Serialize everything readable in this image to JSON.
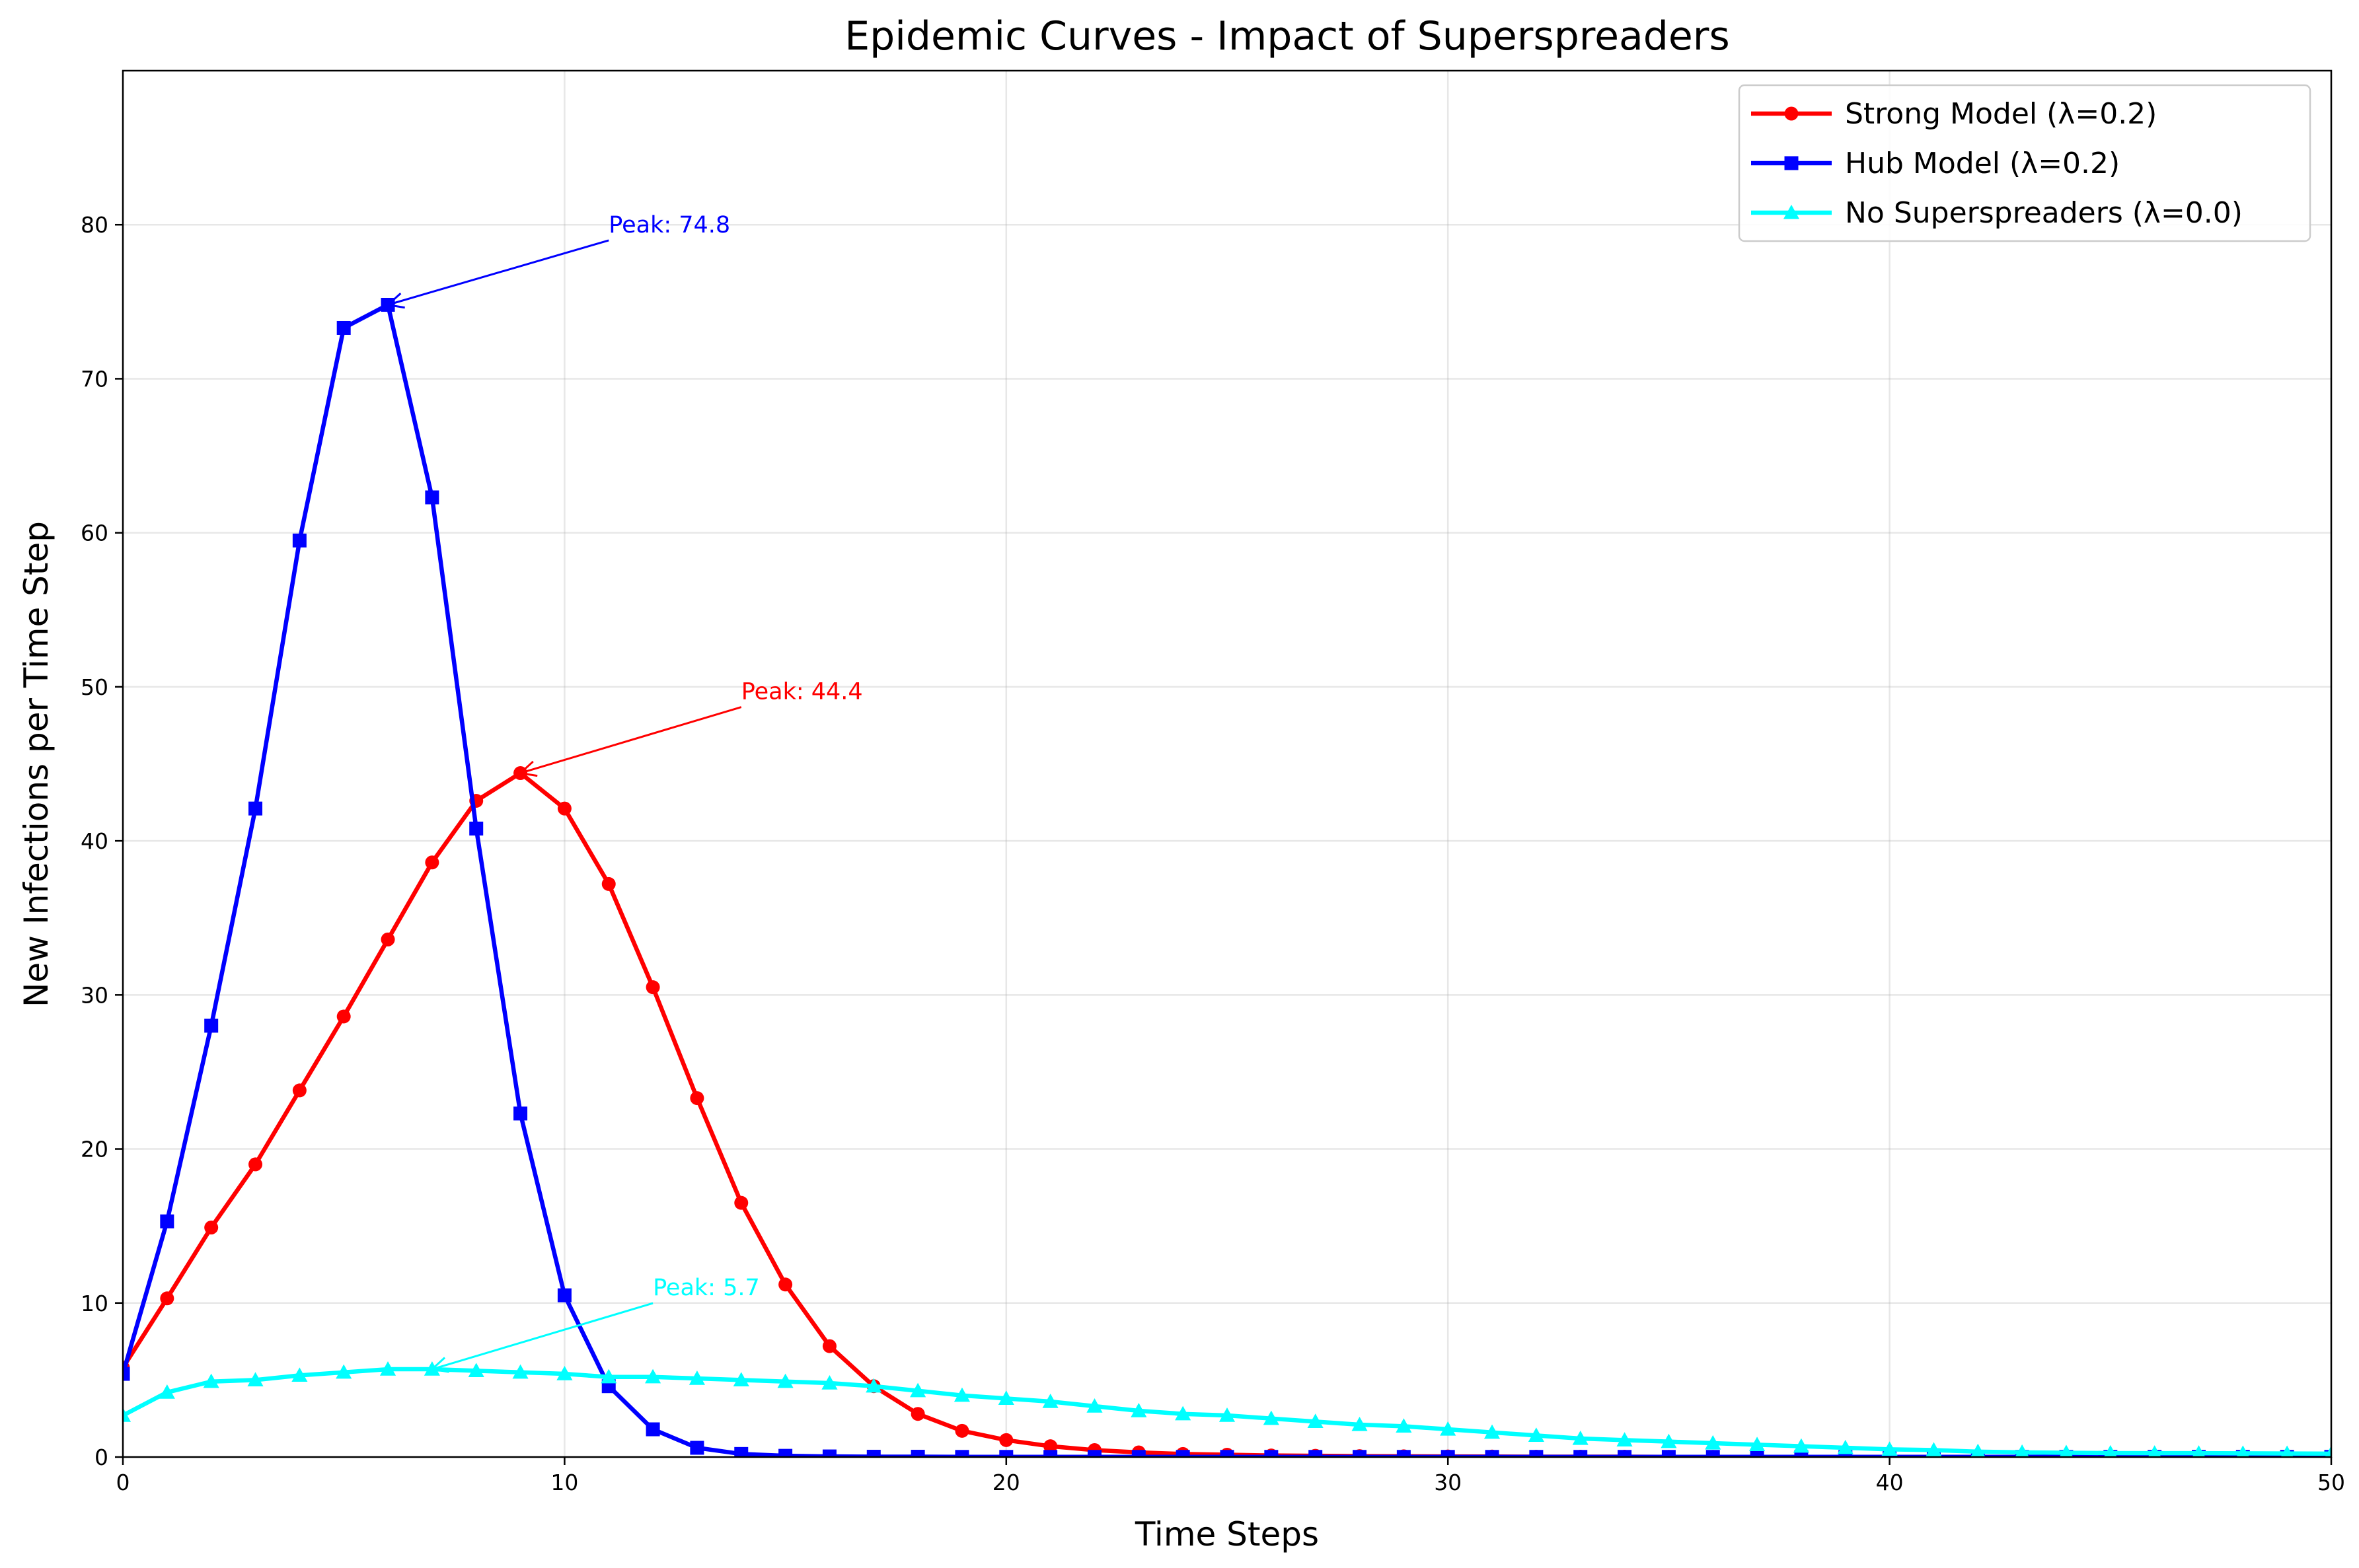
{
  "chart_data": {
    "type": "line",
    "title": "Epidemic Curves - Impact of Superspreaders",
    "xlabel": "Time Steps",
    "ylabel": "New Infections per Time Step",
    "xlim": [
      0,
      50
    ],
    "ylim": [
      0,
      90
    ],
    "xticks": [
      0,
      10,
      20,
      30,
      40,
      50
    ],
    "yticks": [
      0,
      10,
      20,
      30,
      40,
      50,
      60,
      70,
      80
    ],
    "grid": true,
    "legend_position": "top-right",
    "series": [
      {
        "name": "Strong Model (λ=0.2)",
        "color": "#ff0000",
        "marker": "circle",
        "x": [
          0,
          1,
          2,
          3,
          4,
          5,
          6,
          7,
          8,
          9,
          10,
          11,
          12,
          13,
          14,
          15,
          16,
          17,
          18,
          19,
          20,
          21,
          22,
          23,
          24,
          25,
          26,
          27,
          28,
          29,
          30,
          31,
          32,
          33,
          34,
          35,
          36,
          37,
          38,
          39,
          40,
          41,
          42,
          43,
          44,
          45,
          46,
          47,
          48,
          49,
          50
        ],
        "values": [
          5.8,
          10.3,
          14.9,
          19.0,
          23.8,
          28.6,
          33.6,
          38.6,
          42.6,
          44.4,
          42.1,
          37.2,
          30.5,
          23.3,
          16.5,
          11.2,
          7.2,
          4.6,
          2.8,
          1.7,
          1.1,
          0.7,
          0.45,
          0.3,
          0.2,
          0.15,
          0.1,
          0.08,
          0.06,
          0.05,
          0.04,
          0.03,
          0.02,
          0.02,
          0.02,
          0.01,
          0.01,
          0.01,
          0.01,
          0.01,
          0.01,
          0.01,
          0.01,
          0.01,
          0.01,
          0.01,
          0.01,
          0.01,
          0.01,
          0.01,
          0.01
        ]
      },
      {
        "name": "Hub Model (λ=0.2)",
        "color": "#0000ff",
        "marker": "square",
        "x": [
          0,
          1,
          2,
          3,
          4,
          5,
          6,
          7,
          8,
          9,
          10,
          11,
          12,
          13,
          14,
          15,
          16,
          17,
          18,
          19,
          20,
          21,
          22,
          23,
          24,
          25,
          26,
          27,
          28,
          29,
          30,
          31,
          32,
          33,
          34,
          35,
          36,
          37,
          38,
          39,
          40,
          41,
          42,
          43,
          44,
          45,
          46,
          47,
          48,
          49,
          50
        ],
        "values": [
          5.4,
          15.3,
          28.0,
          42.1,
          59.5,
          73.3,
          74.8,
          62.3,
          40.8,
          22.3,
          10.5,
          4.6,
          1.8,
          0.6,
          0.2,
          0.08,
          0.04,
          0.02,
          0.02,
          0.01,
          0.01,
          0.01,
          0.01,
          0.01,
          0.01,
          0.01,
          0.01,
          0.01,
          0.01,
          0.01,
          0.01,
          0.01,
          0.01,
          0.01,
          0.01,
          0.01,
          0.01,
          0.01,
          0.01,
          0.01,
          0.01,
          0.01,
          0.01,
          0.01,
          0.01,
          0.01,
          0.01,
          0.01,
          0.01,
          0.01,
          0.01
        ]
      },
      {
        "name": "No Superspreaders (λ=0.0)",
        "color": "#00ffff",
        "marker": "triangle",
        "x": [
          0,
          1,
          2,
          3,
          4,
          5,
          6,
          7,
          8,
          9,
          10,
          11,
          12,
          13,
          14,
          15,
          16,
          17,
          18,
          19,
          20,
          21,
          22,
          23,
          24,
          25,
          26,
          27,
          28,
          29,
          30,
          31,
          32,
          33,
          34,
          35,
          36,
          37,
          38,
          39,
          40,
          41,
          42,
          43,
          44,
          45,
          46,
          47,
          48,
          49,
          50
        ],
        "values": [
          2.7,
          4.2,
          4.9,
          5.0,
          5.3,
          5.5,
          5.7,
          5.7,
          5.6,
          5.5,
          5.4,
          5.2,
          5.2,
          5.1,
          5.0,
          4.9,
          4.8,
          4.6,
          4.3,
          4.0,
          3.8,
          3.6,
          3.3,
          3.0,
          2.8,
          2.7,
          2.5,
          2.3,
          2.1,
          2.0,
          1.8,
          1.6,
          1.4,
          1.2,
          1.1,
          1.0,
          0.9,
          0.8,
          0.7,
          0.6,
          0.5,
          0.45,
          0.35,
          0.3,
          0.28,
          0.26,
          0.25,
          0.25,
          0.24,
          0.23,
          0.22
        ]
      }
    ],
    "annotations": [
      {
        "text": "Peak: 74.8",
        "color": "#0000ff",
        "point": [
          6,
          74.8
        ],
        "text_at": [
          11,
          79.5
        ]
      },
      {
        "text": "Peak: 44.4",
        "color": "#ff0000",
        "point": [
          9,
          44.4
        ],
        "text_at": [
          14,
          49.2
        ]
      },
      {
        "text": "Peak: 5.7",
        "color": "#00ffff",
        "point": [
          7,
          5.7
        ],
        "text_at": [
          12,
          10.5
        ]
      }
    ]
  }
}
